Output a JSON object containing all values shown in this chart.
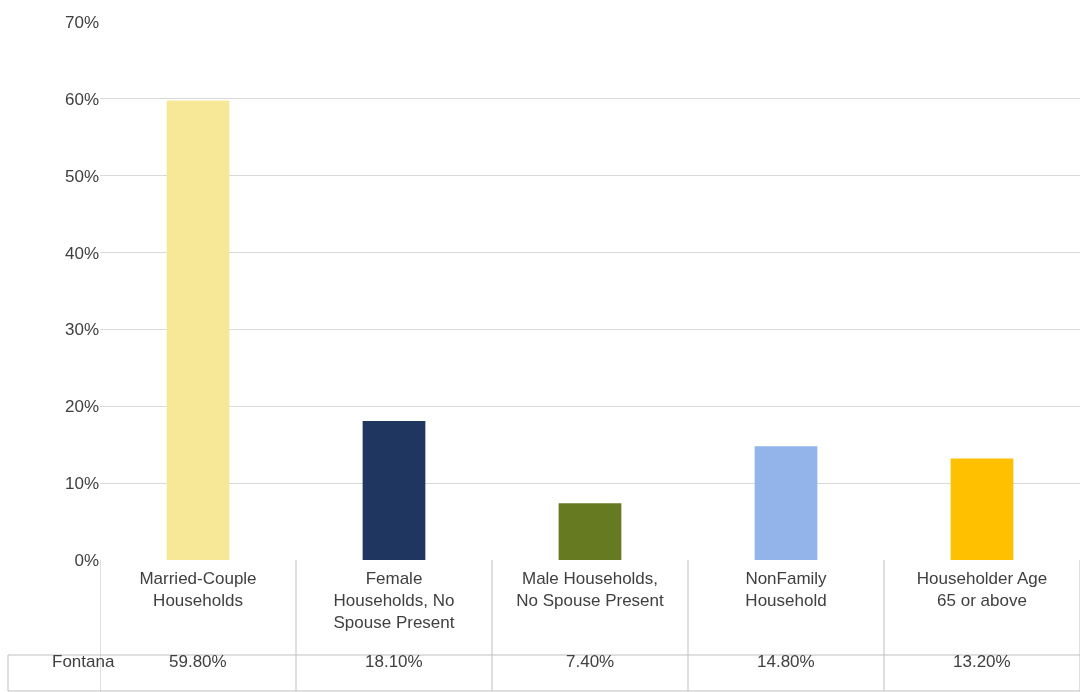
{
  "chart_data": {
    "type": "bar",
    "categories": [
      "Married-Couple Households",
      "Female Households, No Spouse Present",
      "Male Households, No Spouse Present",
      "NonFamily Household",
      "Householder Age 65 or above"
    ],
    "series": [
      {
        "name": "Fontana",
        "values": [
          59.8,
          18.1,
          7.4,
          14.8,
          13.2
        ],
        "colors": [
          "#f7e898",
          "#1f3760",
          "#667a22",
          "#93b4eb",
          "#ffc000"
        ],
        "value_labels": [
          "59.80%",
          "18.10%",
          "7.40%",
          "14.80%",
          "13.20%"
        ]
      }
    ],
    "ylim": [
      0,
      70
    ],
    "yticks": [
      {
        "value": 0,
        "label": "0%"
      },
      {
        "value": 10,
        "label": "10%"
      },
      {
        "value": 20,
        "label": "20%"
      },
      {
        "value": 30,
        "label": "30%"
      },
      {
        "value": 40,
        "label": "40%"
      },
      {
        "value": 50,
        "label": "50%"
      },
      {
        "value": 60,
        "label": "60%"
      },
      {
        "value": 70,
        "label": "70%"
      }
    ],
    "grid": "y"
  }
}
